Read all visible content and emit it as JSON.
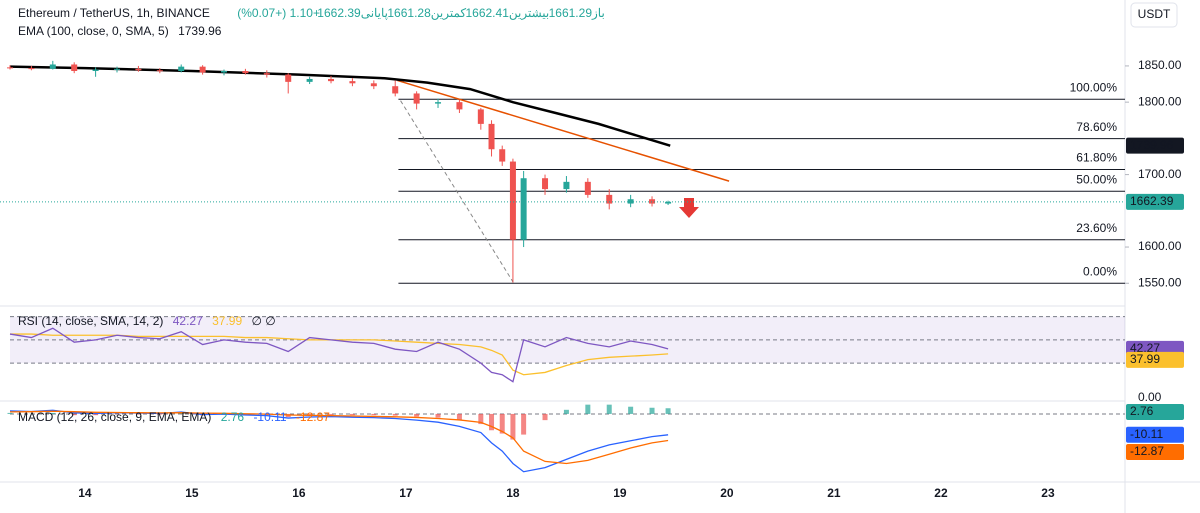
{
  "chart_data": [
    {
      "type": "candlestick",
      "title": "Ethereum / TetherUS, 1h, BINANCE",
      "ohlc": [
        {
          "label": "باز",
          "value": 1661.29
        },
        {
          "label": "بیشترین",
          "value": 1662.41
        },
        {
          "label": "کمترین",
          "value": 1661.28
        },
        {
          "label": "پایانی",
          "value": 1662.39
        }
      ],
      "change": "+1.10 (+0.07%)",
      "currency": "USDT",
      "x": [
        13.3,
        13.5,
        13.7,
        13.9,
        14.1,
        14.3,
        14.5,
        14.7,
        14.9,
        15.1,
        15.3,
        15.5,
        15.7,
        15.9,
        16.1,
        16.3,
        16.5,
        16.7,
        16.9,
        17.1,
        17.3,
        17.5,
        17.7,
        17.8,
        17.9,
        18.0,
        18.1,
        18.3,
        18.5,
        18.7,
        18.9,
        19.1,
        19.3,
        19.45
      ],
      "open": [
        1848,
        1847,
        1846,
        1852,
        1843,
        1845,
        1846,
        1844,
        1843,
        1849,
        1841,
        1843,
        1840,
        1838,
        1828,
        1832,
        1829,
        1826,
        1822,
        1812,
        1798,
        1800,
        1790,
        1770,
        1735,
        1718,
        1610,
        1695,
        1680,
        1690,
        1672,
        1660,
        1666,
        1660
      ],
      "high": [
        1851,
        1850,
        1857,
        1855,
        1848,
        1849,
        1850,
        1847,
        1852,
        1851,
        1845,
        1846,
        1844,
        1840,
        1835,
        1836,
        1833,
        1830,
        1830,
        1815,
        1805,
        1803,
        1792,
        1775,
        1740,
        1722,
        1705,
        1700,
        1698,
        1695,
        1680,
        1672,
        1670,
        1664
      ],
      "low": [
        1845,
        1844,
        1845,
        1840,
        1835,
        1841,
        1842,
        1840,
        1841,
        1838,
        1837,
        1838,
        1834,
        1812,
        1825,
        1826,
        1822,
        1818,
        1808,
        1790,
        1792,
        1785,
        1762,
        1725,
        1712,
        1551,
        1600,
        1672,
        1675,
        1668,
        1652,
        1655,
        1656,
        1658
      ],
      "close": [
        1847,
        1846,
        1852,
        1843,
        1845,
        1846,
        1844,
        1843,
        1849,
        1841,
        1843,
        1840,
        1838,
        1828,
        1832,
        1829,
        1826,
        1822,
        1812,
        1798,
        1800,
        1790,
        1770,
        1735,
        1718,
        1610,
        1695,
        1680,
        1690,
        1672,
        1660,
        1666,
        1660,
        1662.39
      ],
      "up_color": "#26a69a",
      "down_color": "#ef5350",
      "xlim": [
        13.3,
        23.72
      ],
      "xticks": [
        14,
        15,
        16,
        17,
        18,
        19,
        20,
        21,
        22,
        23
      ],
      "ylim": [
        1520,
        1941
      ],
      "yticks": [
        {
          "value": 1550,
          "label": "1550.00"
        },
        {
          "value": 1600,
          "label": "1600.00"
        },
        {
          "value": 1700,
          "label": "1700.00"
        },
        {
          "value": 1800,
          "label": "1800.00"
        },
        {
          "value": 1850,
          "label": "1850.00"
        }
      ],
      "ema": {
        "label": "EMA (100, close, 0, SMA, 5)",
        "value": 1739.96,
        "color": "#000000",
        "x": [
          13.3,
          14.0,
          15.0,
          16.0,
          16.8,
          17.2,
          17.6,
          18.0,
          18.4,
          18.8,
          19.2,
          19.47
        ],
        "values": [
          1849,
          1847,
          1843,
          1838,
          1833,
          1827,
          1818,
          1800,
          1785,
          1770,
          1752,
          1739.96
        ]
      },
      "fib_levels": [
        {
          "label": "100.00%",
          "value": 1804
        },
        {
          "label": "78.60%",
          "value": 1749.6
        },
        {
          "label": "61.80%",
          "value": 1707
        },
        {
          "label": "50.00%",
          "value": 1677
        },
        {
          "label": "23.60%",
          "value": 1610
        },
        {
          "label": "0.00%",
          "value": 1550
        }
      ],
      "fib_start": 16.93,
      "trendline": {
        "color": "#e65100",
        "x": [
          16.92,
          20.02
        ],
        "values": [
          1830,
          1691
        ]
      },
      "swing_line": {
        "color": "#888888",
        "x": [
          16.95,
          18.0
        ],
        "values": [
          1802,
          1552
        ]
      }
    },
    {
      "type": "line",
      "title": "RSI (14, close, SMA, 14, 2)",
      "legend_values": [
        42.27,
        37.99
      ],
      "legend_extra": "∅ ∅",
      "series": [
        {
          "color": "#7e57c2",
          "values": [
            55,
            52,
            60,
            48,
            50,
            54,
            52,
            51,
            57,
            46,
            50,
            48,
            47,
            40,
            52,
            50,
            48,
            47,
            42,
            40,
            48,
            42,
            30,
            22,
            20,
            14,
            50,
            44,
            52,
            47,
            44,
            49,
            46,
            42.27
          ]
        },
        {
          "color": "#fbc02d",
          "values": [
            55,
            55,
            54,
            54,
            54,
            54,
            53,
            53,
            53,
            53,
            53,
            52,
            52,
            51,
            50,
            50,
            50,
            50,
            49,
            48,
            47,
            46,
            44,
            41,
            37,
            24,
            20,
            22,
            28,
            33,
            35,
            36,
            37,
            37.99
          ]
        }
      ],
      "ylim": [
        0,
        80
      ],
      "yticks": [
        {
          "value": 0,
          "label": "0.00"
        }
      ],
      "levels": [
        70,
        50,
        30
      ]
    },
    {
      "type": "macd",
      "title": "MACD (12, 26, close, 9, EMA, EMA)",
      "legend_values": [
        2.76,
        -10.11,
        -12.87
      ],
      "histogram": {
        "up_color": "#26a69a",
        "down_color": "#ef5350",
        "values": [
          0.5,
          0.1,
          0.5,
          -0.6,
          -0.6,
          -0.1,
          -0.2,
          -0.3,
          0.3,
          -0.7,
          -0.4,
          -0.6,
          -0.7,
          -1.5,
          -0.8,
          -0.5,
          -0.6,
          -0.6,
          -0.8,
          -1.3,
          -1.8,
          -3.1,
          -4.9,
          -7.9,
          -9.5,
          -12.4,
          -10,
          -3,
          2,
          4.5,
          4.5,
          3.5,
          3,
          2.76
        ]
      },
      "series": [
        {
          "color": "#2962ff",
          "values": [
            1.5,
            1.2,
            1.8,
            0.5,
            0.2,
            0.6,
            0.4,
            0.2,
            0.9,
            -0.3,
            -0.1,
            -0.5,
            -0.8,
            -2,
            -1.5,
            -1.3,
            -1.6,
            -1.8,
            -2.2,
            -3,
            -4,
            -6,
            -9,
            -14,
            -18,
            -24,
            -28,
            -26,
            -22,
            -18,
            -15,
            -13,
            -11,
            -10.11
          ]
        },
        {
          "color": "#ff6d00",
          "values": [
            1.0,
            1.1,
            1.3,
            1.1,
            0.8,
            0.7,
            0.6,
            0.5,
            0.6,
            0.4,
            0.3,
            0.1,
            -0.1,
            -0.5,
            -0.7,
            -0.8,
            -1.0,
            -1.2,
            -1.4,
            -1.7,
            -2.2,
            -2.9,
            -4.1,
            -6.1,
            -8.5,
            -11.6,
            -18,
            -23,
            -24,
            -22.5,
            -19.5,
            -16.5,
            -14,
            -12.87
          ]
        }
      ],
      "ylim": [
        -32,
        5.3
      ]
    }
  ]
}
